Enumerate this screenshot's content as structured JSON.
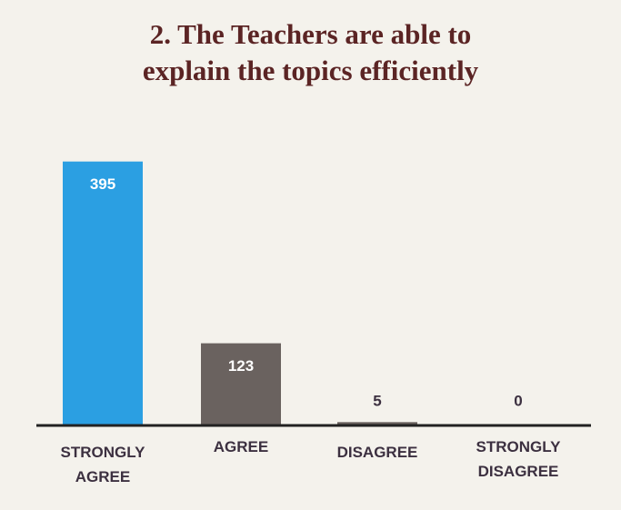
{
  "chart_data": {
    "type": "bar",
    "title": [
      "2. The Teachers are able to",
      "explain the topics efficiently"
    ],
    "categories": [
      "STRONGLY AGREE",
      "AGREE",
      "DISAGREE",
      "STRONGLY DISAGREE"
    ],
    "values": [
      395,
      123,
      5,
      0
    ],
    "colors": [
      "#2b9fe2",
      "#6a625f",
      "#6a625f",
      "#6a625f"
    ],
    "ylim": [
      0,
      400
    ]
  }
}
